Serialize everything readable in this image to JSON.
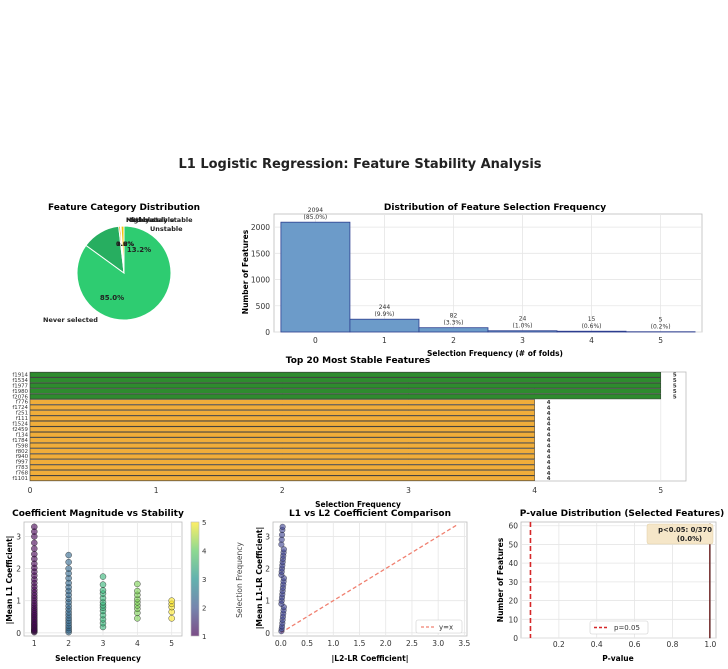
{
  "suptitle": "L1 Logistic Regression: Feature Stability Analysis",
  "chart_data": [
    {
      "type": "pie",
      "title": "Feature Category Distribution",
      "slices": [
        {
          "label": "Never selected",
          "pct_label": "85.0%",
          "value": 85.0,
          "color": "#2ecc71"
        },
        {
          "label": "Unstable",
          "pct_label": "13.2%",
          "value": 13.2,
          "color": "#27ae60"
        },
        {
          "label": "Highly stable",
          "pct_label": "0.6%",
          "value": 0.6,
          "color": "#f39c12"
        },
        {
          "label": "Stable",
          "pct_label": "0.2%",
          "value": 0.2,
          "color": "#e67e22"
        },
        {
          "label": "Moderately stable",
          "pct_label": "1.0%",
          "value": 1.0,
          "color": "#f1c40f"
        }
      ]
    },
    {
      "type": "bar",
      "title": "Distribution of Feature Selection Frequency",
      "xlabel": "Selection Frequency (# of folds)",
      "ylabel": "Number of Features",
      "categories": [
        "0",
        "1",
        "2",
        "3",
        "4",
        "5"
      ],
      "values": [
        2094,
        244,
        82,
        24,
        15,
        5
      ],
      "labels": [
        "2094\n(85.0%)",
        "244\n(9.9%)",
        "82\n(3.3%)",
        "24\n(1.0%)",
        "15\n(0.6%)",
        "5\n(0.2%)"
      ],
      "yticks": [
        0,
        500,
        1000,
        1500,
        2000
      ],
      "ylim": [
        0,
        2250
      ],
      "color": "#6c9bc9",
      "grid": true
    },
    {
      "type": "bar",
      "orientation": "horizontal",
      "title": "Top 20 Most Stable Features",
      "xlabel": "Selection Frequency",
      "xticks": [
        0,
        1,
        2,
        3,
        4,
        5
      ],
      "xlim": [
        0,
        5.2
      ],
      "categories": [
        "f1914",
        "f1534",
        "f1977",
        "f1980",
        "f2076",
        "f776",
        "f1724",
        "f251",
        "f111",
        "f1524",
        "f2459",
        "f134",
        "f1784",
        "f598",
        "f802",
        "f940",
        "f997",
        "f783",
        "f768",
        "f1101"
      ],
      "values": [
        5,
        5,
        5,
        5,
        5,
        4,
        4,
        4,
        4,
        4,
        4,
        4,
        4,
        4,
        4,
        4,
        4,
        4,
        4,
        4
      ],
      "colors": {
        "5": "#2e8b2e",
        "4": "#f0ad3a"
      }
    },
    {
      "type": "scatter",
      "title": "Coefficient Magnitude vs Stability",
      "xlabel": "Selection Frequency",
      "ylabel": "|Mean L1 Coefficient|",
      "xticks": [
        1,
        2,
        3,
        4,
        5
      ],
      "yticks": [
        0,
        1,
        2,
        3
      ],
      "xlim": [
        0.7,
        5.3
      ],
      "ylim": [
        -0.1,
        3.45
      ],
      "colorbar_label": "Selection Frequency",
      "colorbar_ticks": [
        1,
        2,
        3,
        4,
        5
      ],
      "groups": [
        {
          "x": 1,
          "values": [
            0.02,
            0.05,
            0.08,
            0.1,
            0.14,
            0.18,
            0.22,
            0.26,
            0.3,
            0.35,
            0.4,
            0.45,
            0.5,
            0.55,
            0.6,
            0.66,
            0.72,
            0.78,
            0.85,
            0.92,
            1.0,
            1.08,
            1.16,
            1.25,
            1.34,
            1.44,
            1.55,
            1.66,
            1.78,
            1.9,
            2.02,
            2.15,
            2.3,
            2.45,
            2.62,
            2.8,
            3.0,
            3.15,
            3.3
          ]
        },
        {
          "x": 2,
          "values": [
            0.02,
            0.08,
            0.15,
            0.22,
            0.3,
            0.38,
            0.46,
            0.55,
            0.64,
            0.74,
            0.84,
            0.95,
            1.06,
            1.18,
            1.3,
            1.42,
            1.55,
            1.7,
            1.85,
            2.0,
            2.2,
            2.42
          ]
        },
        {
          "x": 3,
          "values": [
            0.18,
            0.3,
            0.42,
            0.55,
            0.68,
            0.78,
            0.86,
            0.95,
            1.08,
            1.22,
            1.32,
            1.5,
            1.75
          ]
        },
        {
          "x": 4,
          "values": [
            0.45,
            0.62,
            0.75,
            0.85,
            0.95,
            1.05,
            1.18,
            1.3,
            1.52
          ]
        },
        {
          "x": 5,
          "values": [
            0.45,
            0.65,
            0.8,
            0.9,
            1.0
          ]
        }
      ]
    },
    {
      "type": "scatter",
      "title": "L1 vs L2 Coefficient Comparison",
      "xlabel": "|L2-LR Coefficient|",
      "ylabel": "|Mean L1-LR Coefficient|",
      "xticks": [
        0.0,
        0.5,
        1.0,
        1.5,
        2.0,
        2.5,
        3.0,
        3.5
      ],
      "xtick_labels": [
        "0.0",
        "0.5",
        "1.0",
        "1.5",
        "2.0",
        "2.5",
        "3.0",
        "3.5"
      ],
      "yticks": [
        0,
        1,
        2,
        3
      ],
      "xlim": [
        -0.15,
        3.55
      ],
      "ylim": [
        -0.1,
        3.45
      ],
      "reference_line": {
        "label": "y=x",
        "from": [
          0,
          0
        ],
        "to": [
          3.35,
          3.35
        ],
        "color": "#f08070"
      },
      "point_values": [
        0.05,
        0.12,
        0.2,
        0.3,
        0.4,
        0.5,
        0.6,
        0.7,
        0.8,
        0.9,
        1.0,
        1.1,
        1.2,
        1.3,
        1.4,
        1.5,
        1.6,
        1.7,
        1.8,
        1.9,
        2.0,
        2.1,
        2.2,
        2.3,
        2.4,
        2.5,
        2.6,
        2.75,
        2.9,
        3.05,
        3.2,
        3.3
      ],
      "legend": "lower right"
    },
    {
      "type": "bar",
      "title": "P-value Distribution (Selected Features)",
      "xlabel": "P-value",
      "ylabel": "Number of Features",
      "xticks": [
        0.2,
        0.4,
        0.6,
        0.8,
        1.0
      ],
      "xtick_labels": [
        "0.2",
        "0.4",
        "0.6",
        "0.8",
        "1.0"
      ],
      "yticks": [
        0,
        10,
        20,
        30,
        40,
        50,
        60
      ],
      "xlim": [
        0.0,
        1.03
      ],
      "ylim": [
        0,
        62
      ],
      "bins": [
        {
          "x0": 0.995,
          "x1": 1.0,
          "count": 61
        }
      ],
      "threshold": {
        "value": 0.05,
        "label": "p=0.05"
      },
      "annotation": "p<0.05: 0/370\n(0.0%)",
      "legend": "lower center"
    }
  ]
}
